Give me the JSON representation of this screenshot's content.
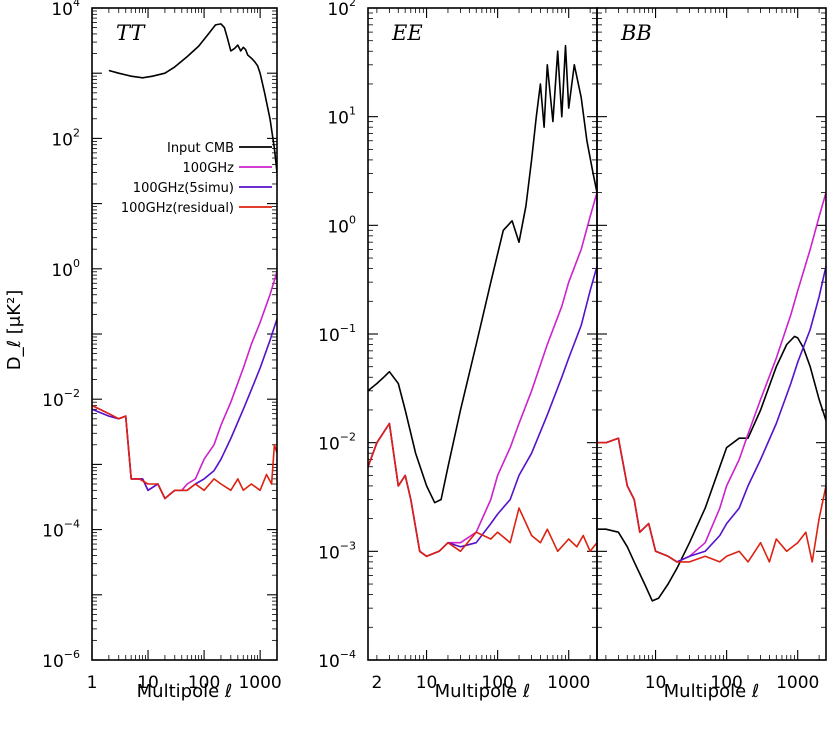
{
  "colors": {
    "input_cmb": "#000000",
    "ghz100": "#cc22cc",
    "ghz100_5simu": "#5511cc",
    "ghz100_residual": "#dd2211"
  },
  "legend": [
    {
      "label": "Input CMB",
      "color_key": "input_cmb"
    },
    {
      "label": "100GHz",
      "color_key": "ghz100"
    },
    {
      "label": "100GHz(5simu)",
      "color_key": "ghz100_5simu"
    },
    {
      "label": "100GHz(residual)",
      "color_key": "ghz100_residual"
    }
  ],
  "y_axis_label": "D_ℓ [μK²]",
  "x_axis_label": "Multipole ℓ",
  "chart_data": [
    {
      "type": "line",
      "title": "TT",
      "xscale": "log",
      "yscale": "log",
      "xlim": [
        1,
        2000
      ],
      "ylim": [
        1e-06,
        10000
      ],
      "xticks": [
        1,
        10,
        100,
        1000
      ],
      "yticks": [
        -6,
        -4,
        -2,
        0,
        2,
        4
      ],
      "ytick_labels_shown": true,
      "legend_location": "upper-left",
      "series": [
        {
          "name": "Input CMB",
          "color_key": "input_cmb",
          "x": [
            2,
            3,
            5,
            8,
            12,
            20,
            30,
            50,
            80,
            120,
            160,
            200,
            230,
            260,
            300,
            350,
            400,
            450,
            500,
            550,
            600,
            700,
            800,
            900,
            1000,
            1200,
            1500,
            1800,
            2000
          ],
          "y": [
            1100,
            1000,
            900,
            850,
            900,
            1000,
            1250,
            1800,
            2600,
            4000,
            5500,
            5700,
            5000,
            3500,
            2200,
            2400,
            2700,
            2200,
            2500,
            2300,
            1900,
            1700,
            1500,
            1300,
            1000,
            500,
            200,
            70,
            30
          ]
        },
        {
          "name": "100GHz",
          "color_key": "ghz100",
          "x": [
            1,
            2,
            3,
            4,
            5,
            8,
            10,
            15,
            20,
            30,
            40,
            50,
            70,
            100,
            150,
            200,
            300,
            500,
            700,
            1000,
            1500,
            2000
          ],
          "y": [
            0.008,
            0.006,
            0.005,
            0.0055,
            0.0006,
            0.0006,
            0.0004,
            0.0005,
            0.0003,
            0.0004,
            0.0004,
            0.0005,
            0.0006,
            0.0012,
            0.002,
            0.004,
            0.009,
            0.03,
            0.07,
            0.15,
            0.4,
            0.9
          ]
        },
        {
          "name": "100GHz(5simu)",
          "color_key": "ghz100_5simu",
          "x": [
            1,
            2,
            3,
            4,
            5,
            8,
            10,
            15,
            20,
            30,
            50,
            70,
            100,
            150,
            200,
            300,
            500,
            700,
            1000,
            1500,
            2000
          ],
          "y": [
            0.007,
            0.0055,
            0.005,
            0.0055,
            0.0006,
            0.0006,
            0.0004,
            0.0005,
            0.0003,
            0.0004,
            0.0004,
            0.0005,
            0.0006,
            0.0008,
            0.0012,
            0.0025,
            0.007,
            0.014,
            0.03,
            0.08,
            0.17
          ]
        },
        {
          "name": "100GHz(residual)",
          "color_key": "ghz100_residual",
          "x": [
            1,
            2,
            3,
            4,
            5,
            7,
            10,
            15,
            20,
            30,
            50,
            70,
            100,
            150,
            200,
            300,
            400,
            500,
            700,
            1000,
            1300,
            1600,
            1800,
            2000
          ],
          "y": [
            0.008,
            0.006,
            0.005,
            0.0055,
            0.0006,
            0.0006,
            0.0005,
            0.0005,
            0.0003,
            0.0004,
            0.0004,
            0.0005,
            0.0004,
            0.0006,
            0.0005,
            0.0004,
            0.0006,
            0.0004,
            0.0005,
            0.0004,
            0.0007,
            0.0005,
            0.002,
            0.0015
          ]
        }
      ]
    },
    {
      "type": "line",
      "title": "EE",
      "xscale": "log",
      "yscale": "log",
      "xlim": [
        1.5,
        2500
      ],
      "ylim": [
        0.0001,
        100
      ],
      "xticks": [
        2,
        10,
        100,
        1000
      ],
      "yticks": [
        -4,
        -3,
        -2,
        -1,
        0,
        1,
        2
      ],
      "ytick_labels_shown": true,
      "series": [
        {
          "name": "Input CMB",
          "color_key": "input_cmb",
          "x": [
            1.5,
            2,
            2.5,
            3,
            4,
            5,
            7,
            10,
            13,
            16,
            20,
            30,
            50,
            80,
            120,
            160,
            200,
            250,
            300,
            350,
            400,
            450,
            500,
            600,
            700,
            800,
            900,
            1000,
            1200,
            1500,
            1800,
            2200,
            2500
          ],
          "y": [
            0.03,
            0.035,
            0.04,
            0.045,
            0.035,
            0.02,
            0.008,
            0.004,
            0.0028,
            0.003,
            0.006,
            0.02,
            0.08,
            0.3,
            0.9,
            1.1,
            0.7,
            1.5,
            4,
            10,
            20,
            8,
            30,
            9,
            40,
            10,
            45,
            12,
            30,
            15,
            6,
            3,
            2
          ]
        },
        {
          "name": "100GHz",
          "color_key": "ghz100",
          "x": [
            1.5,
            2,
            3,
            4,
            5,
            6,
            8,
            10,
            15,
            20,
            30,
            50,
            80,
            100,
            150,
            200,
            300,
            500,
            800,
            1000,
            1500,
            2000,
            2500
          ],
          "y": [
            0.006,
            0.01,
            0.015,
            0.004,
            0.005,
            0.003,
            0.001,
            0.0009,
            0.001,
            0.0012,
            0.0012,
            0.0015,
            0.003,
            0.005,
            0.009,
            0.015,
            0.03,
            0.08,
            0.18,
            0.3,
            0.6,
            1.2,
            2
          ]
        },
        {
          "name": "100GHz(5simu)",
          "color_key": "ghz100_5simu",
          "x": [
            1.5,
            2,
            3,
            4,
            5,
            6,
            8,
            10,
            15,
            20,
            30,
            50,
            80,
            100,
            150,
            200,
            300,
            500,
            800,
            1000,
            1500,
            2000,
            2500
          ],
          "y": [
            0.006,
            0.01,
            0.015,
            0.004,
            0.005,
            0.003,
            0.001,
            0.0009,
            0.001,
            0.0012,
            0.0011,
            0.0012,
            0.0018,
            0.0022,
            0.003,
            0.005,
            0.008,
            0.018,
            0.04,
            0.06,
            0.12,
            0.25,
            0.42
          ]
        },
        {
          "name": "100GHz(residual)",
          "color_key": "ghz100_residual",
          "x": [
            1.5,
            2,
            3,
            4,
            5,
            6,
            8,
            10,
            15,
            20,
            30,
            50,
            80,
            100,
            150,
            200,
            300,
            400,
            500,
            700,
            1000,
            1300,
            1600,
            2000,
            2500
          ],
          "y": [
            0.006,
            0.01,
            0.015,
            0.004,
            0.005,
            0.003,
            0.001,
            0.0009,
            0.001,
            0.0012,
            0.001,
            0.0015,
            0.0013,
            0.0015,
            0.0012,
            0.0025,
            0.0014,
            0.0012,
            0.0016,
            0.001,
            0.0013,
            0.0011,
            0.0014,
            0.001,
            0.0012
          ]
        }
      ]
    },
    {
      "type": "line",
      "title": "BB",
      "xscale": "log",
      "yscale": "log",
      "xlim": [
        1.5,
        2500
      ],
      "ylim": [
        0.0001,
        100
      ],
      "xticks": [
        10,
        100,
        1000
      ],
      "yticks": [
        -4,
        -3,
        -2,
        -1,
        0,
        1,
        2
      ],
      "ytick_labels_shown": false,
      "series": [
        {
          "name": "Input CMB",
          "color_key": "input_cmb",
          "x": [
            1.5,
            2,
            3,
            4,
            5,
            7,
            9,
            11,
            15,
            20,
            30,
            50,
            80,
            100,
            150,
            200,
            300,
            500,
            700,
            900,
            1000,
            1200,
            1500,
            2000,
            2500
          ],
          "y": [
            0.0016,
            0.0016,
            0.0015,
            0.0011,
            0.0008,
            0.0005,
            0.00035,
            0.00037,
            0.0005,
            0.0007,
            0.0012,
            0.0025,
            0.006,
            0.009,
            0.011,
            0.011,
            0.02,
            0.05,
            0.08,
            0.095,
            0.092,
            0.075,
            0.05,
            0.025,
            0.016
          ]
        },
        {
          "name": "100GHz",
          "color_key": "ghz100",
          "x": [
            1.5,
            2,
            3,
            4,
            5,
            6,
            8,
            10,
            15,
            20,
            30,
            50,
            80,
            100,
            150,
            200,
            300,
            500,
            800,
            1000,
            1500,
            2000,
            2500
          ],
          "y": [
            0.01,
            0.01,
            0.011,
            0.004,
            0.003,
            0.0015,
            0.0018,
            0.001,
            0.0009,
            0.0008,
            0.0009,
            0.0012,
            0.0025,
            0.004,
            0.007,
            0.012,
            0.025,
            0.06,
            0.15,
            0.25,
            0.6,
            1.2,
            2
          ]
        },
        {
          "name": "100GHz(5simu)",
          "color_key": "ghz100_5simu",
          "x": [
            1.5,
            2,
            3,
            4,
            5,
            6,
            8,
            10,
            15,
            20,
            30,
            50,
            80,
            100,
            150,
            200,
            300,
            500,
            800,
            1000,
            1500,
            2000,
            2500
          ],
          "y": [
            0.01,
            0.01,
            0.011,
            0.004,
            0.003,
            0.0015,
            0.0018,
            0.001,
            0.0009,
            0.0008,
            0.0009,
            0.001,
            0.0014,
            0.0018,
            0.0025,
            0.004,
            0.007,
            0.015,
            0.035,
            0.055,
            0.11,
            0.22,
            0.42
          ]
        },
        {
          "name": "100GHz(residual)",
          "color_key": "ghz100_residual",
          "x": [
            1.5,
            2,
            3,
            4,
            5,
            6,
            8,
            10,
            15,
            20,
            30,
            50,
            80,
            100,
            150,
            200,
            300,
            400,
            500,
            700,
            1000,
            1300,
            1600,
            2000,
            2500
          ],
          "y": [
            0.01,
            0.01,
            0.011,
            0.004,
            0.003,
            0.0015,
            0.0018,
            0.001,
            0.0009,
            0.0008,
            0.0008,
            0.0009,
            0.0008,
            0.0009,
            0.001,
            0.0008,
            0.0012,
            0.0008,
            0.0013,
            0.001,
            0.0012,
            0.0015,
            0.0008,
            0.002,
            0.004
          ]
        }
      ]
    }
  ]
}
